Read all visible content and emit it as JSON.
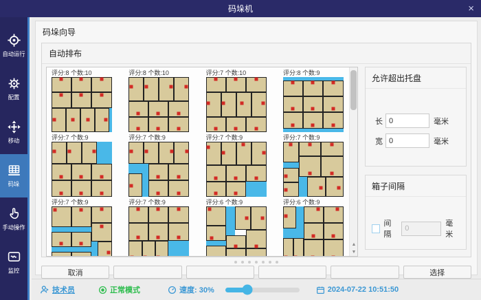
{
  "title_bar": {
    "title": "码垛机",
    "close": "×"
  },
  "sidebar": {
    "items": [
      {
        "name": "auto-run",
        "label": "自动运行",
        "icon": "target-icon",
        "active": false
      },
      {
        "name": "config",
        "label": "配置",
        "icon": "gear-icon",
        "active": false
      },
      {
        "name": "move",
        "label": "移动",
        "icon": "move-icon",
        "active": false
      },
      {
        "name": "palletize",
        "label": "码垛",
        "icon": "pallet-icon",
        "active": true
      },
      {
        "name": "manual",
        "label": "手动操作",
        "icon": "hand-icon",
        "active": false
      },
      {
        "name": "monitor",
        "label": "监控",
        "icon": "monitor-icon",
        "active": false
      }
    ]
  },
  "wizard": {
    "title": "码垛向导",
    "section_title": "自动排布"
  },
  "tiles": [
    {
      "label": "评分:8 个数:10",
      "g": [
        [
          96,
          56,
          4,
          44
        ]
      ],
      "b": [
        [
          0,
          0,
          33,
          28,
          16,
          4
        ],
        [
          33,
          0,
          33,
          28,
          49,
          4
        ],
        [
          66,
          0,
          34,
          28,
          83,
          4
        ],
        [
          0,
          28,
          33,
          28,
          16,
          32
        ],
        [
          33,
          28,
          33,
          28,
          49,
          32
        ],
        [
          66,
          28,
          34,
          28,
          83,
          32
        ],
        [
          0,
          56,
          24,
          44,
          5,
          78
        ],
        [
          24,
          56,
          24,
          44,
          35,
          78
        ],
        [
          48,
          56,
          24,
          44,
          60,
          78
        ],
        [
          72,
          56,
          24,
          44,
          90,
          78
        ]
      ]
    },
    {
      "label": "评分:8 个数:10",
      "g": [],
      "b": [
        [
          0,
          0,
          25,
          44,
          4,
          18
        ],
        [
          25,
          0,
          25,
          44,
          29,
          18
        ],
        [
          50,
          0,
          25,
          44,
          70,
          18
        ],
        [
          75,
          0,
          25,
          44,
          95,
          18
        ],
        [
          0,
          44,
          33,
          28,
          16,
          66
        ],
        [
          33,
          44,
          33,
          28,
          49,
          66
        ],
        [
          66,
          44,
          34,
          28,
          83,
          66
        ],
        [
          0,
          72,
          33,
          28,
          16,
          94
        ],
        [
          33,
          72,
          33,
          28,
          49,
          94
        ],
        [
          66,
          72,
          34,
          28,
          83,
          94
        ]
      ]
    },
    {
      "label": "评分:7 个数:10",
      "g": [],
      "b": [
        [
          0,
          0,
          33,
          28,
          16,
          4
        ],
        [
          33,
          0,
          33,
          28,
          49,
          4
        ],
        [
          66,
          0,
          34,
          28,
          83,
          4
        ],
        [
          0,
          28,
          25,
          44,
          4,
          48
        ],
        [
          25,
          28,
          25,
          44,
          29,
          48
        ],
        [
          50,
          28,
          25,
          44,
          60,
          48
        ],
        [
          75,
          28,
          25,
          44,
          95,
          48
        ],
        [
          0,
          72,
          33,
          28,
          16,
          94
        ],
        [
          33,
          72,
          33,
          28,
          49,
          94
        ],
        [
          66,
          72,
          34,
          28,
          83,
          94
        ]
      ]
    },
    {
      "label": "评分:8 个数:9",
      "g": [
        [
          0,
          0,
          100,
          6
        ],
        [
          0,
          94,
          100,
          6
        ]
      ],
      "b": [
        [
          0,
          6,
          33,
          29,
          16,
          10
        ],
        [
          33,
          6,
          33,
          29,
          49,
          10
        ],
        [
          66,
          6,
          34,
          29,
          83,
          10
        ],
        [
          0,
          35,
          33,
          29,
          16,
          58
        ],
        [
          33,
          35,
          33,
          29,
          49,
          58
        ],
        [
          66,
          35,
          34,
          29,
          83,
          58
        ],
        [
          0,
          64,
          33,
          30,
          16,
          88
        ],
        [
          33,
          64,
          33,
          30,
          49,
          88
        ],
        [
          66,
          64,
          34,
          30,
          83,
          88
        ]
      ]
    },
    {
      "label": "评分:7 个数:9",
      "g": [
        [
          75,
          0,
          25,
          40
        ]
      ],
      "b": [
        [
          0,
          0,
          25,
          40,
          4,
          18
        ],
        [
          25,
          0,
          25,
          40,
          29,
          18
        ],
        [
          50,
          0,
          25,
          40,
          70,
          18
        ],
        [
          0,
          40,
          33,
          30,
          16,
          64
        ],
        [
          33,
          40,
          33,
          30,
          49,
          64
        ],
        [
          66,
          40,
          34,
          30,
          83,
          64
        ],
        [
          0,
          70,
          33,
          30,
          16,
          94
        ],
        [
          33,
          70,
          33,
          30,
          49,
          94
        ],
        [
          66,
          70,
          34,
          30,
          83,
          94
        ]
      ]
    },
    {
      "label": "评分:7 个数:9",
      "g": [
        [
          0,
          40,
          33,
          18
        ],
        [
          22,
          58,
          11,
          42
        ]
      ],
      "b": [
        [
          0,
          0,
          25,
          40,
          4,
          18
        ],
        [
          25,
          0,
          25,
          40,
          29,
          18
        ],
        [
          50,
          0,
          25,
          40,
          71,
          18
        ],
        [
          75,
          0,
          25,
          40,
          96,
          18
        ],
        [
          0,
          58,
          22,
          42,
          4,
          80
        ],
        [
          33,
          40,
          33,
          30,
          49,
          64
        ],
        [
          66,
          40,
          34,
          30,
          83,
          64
        ],
        [
          33,
          70,
          33,
          30,
          49,
          94
        ],
        [
          66,
          70,
          34,
          30,
          83,
          94
        ]
      ]
    },
    {
      "label": "评分:7 个数:9",
      "g": [
        [
          66,
          72,
          34,
          28
        ]
      ],
      "b": [
        [
          0,
          0,
          25,
          42,
          4,
          10
        ],
        [
          25,
          0,
          25,
          42,
          29,
          20
        ],
        [
          50,
          0,
          25,
          42,
          62,
          5
        ],
        [
          75,
          0,
          25,
          42,
          96,
          20
        ],
        [
          0,
          42,
          33,
          30,
          16,
          66
        ],
        [
          33,
          42,
          33,
          30,
          49,
          66
        ],
        [
          66,
          42,
          34,
          30,
          83,
          66
        ],
        [
          0,
          72,
          33,
          28,
          16,
          94
        ],
        [
          33,
          72,
          33,
          28,
          49,
          94
        ]
      ]
    },
    {
      "label": "评分:7 个数:9",
      "g": [
        [
          0,
          38,
          26,
          10
        ],
        [
          26,
          64,
          14,
          36
        ]
      ],
      "b": [
        [
          0,
          0,
          26,
          38,
          13,
          5
        ],
        [
          26,
          0,
          37,
          26,
          44,
          5
        ],
        [
          63,
          0,
          37,
          26,
          81,
          5
        ],
        [
          26,
          26,
          37,
          38,
          44,
          58
        ],
        [
          63,
          26,
          37,
          38,
          81,
          58
        ],
        [
          0,
          48,
          26,
          26,
          5,
          62
        ],
        [
          0,
          74,
          26,
          26,
          5,
          88
        ],
        [
          40,
          64,
          30,
          36,
          62,
          84
        ],
        [
          70,
          64,
          30,
          36,
          92,
          84
        ]
      ]
    },
    {
      "label": "评分:7 个数:9",
      "g": [
        [
          0,
          38,
          66,
          8
        ],
        [
          0,
          74,
          66,
          8
        ],
        [
          66,
          64,
          10,
          36
        ]
      ],
      "b": [
        [
          0,
          0,
          33,
          38,
          6,
          6
        ],
        [
          33,
          0,
          33,
          38,
          49,
          6
        ],
        [
          66,
          0,
          34,
          30,
          83,
          5
        ],
        [
          66,
          30,
          34,
          34,
          83,
          36
        ],
        [
          0,
          46,
          33,
          28,
          16,
          68
        ],
        [
          33,
          46,
          33,
          28,
          49,
          68
        ],
        [
          0,
          82,
          33,
          18,
          16,
          96
        ],
        [
          33,
          82,
          33,
          18,
          49,
          96
        ],
        [
          76,
          64,
          24,
          36,
          94,
          84
        ]
      ]
    },
    {
      "label": "评分:7 个数:9",
      "g": [
        [
          66,
          62,
          34,
          38
        ]
      ],
      "b": [
        [
          0,
          0,
          33,
          30,
          16,
          5
        ],
        [
          33,
          0,
          33,
          30,
          49,
          5
        ],
        [
          66,
          0,
          34,
          30,
          83,
          5
        ],
        [
          0,
          30,
          33,
          32,
          16,
          56
        ],
        [
          33,
          30,
          33,
          32,
          49,
          56
        ],
        [
          66,
          30,
          34,
          32,
          83,
          56
        ],
        [
          0,
          62,
          22,
          38,
          5,
          92
        ],
        [
          22,
          62,
          22,
          38,
          27,
          92
        ],
        [
          44,
          62,
          22,
          38,
          49,
          92
        ]
      ]
    },
    {
      "label": "评分:6 个数:9",
      "g": [
        [
          33,
          0,
          15,
          52
        ],
        [
          0,
          63,
          33,
          8
        ]
      ],
      "b": [
        [
          0,
          0,
          33,
          35,
          6,
          5
        ],
        [
          48,
          0,
          26,
          42,
          68,
          21
        ],
        [
          74,
          0,
          26,
          42,
          94,
          21
        ],
        [
          0,
          35,
          33,
          28,
          10,
          58
        ],
        [
          33,
          52,
          33,
          24,
          49,
          72
        ],
        [
          66,
          42,
          34,
          34,
          83,
          72
        ],
        [
          0,
          71,
          33,
          29,
          8,
          94
        ],
        [
          33,
          76,
          33,
          24,
          49,
          96
        ],
        [
          66,
          76,
          34,
          24,
          83,
          96
        ]
      ]
    },
    {
      "label": "评分:6 个数:9",
      "g": [
        [
          22,
          0,
          12,
          58
        ],
        [
          0,
          40,
          22,
          18
        ]
      ],
      "b": [
        [
          0,
          0,
          22,
          40,
          4,
          18
        ],
        [
          34,
          0,
          33,
          30,
          58,
          5
        ],
        [
          67,
          0,
          33,
          30,
          90,
          5
        ],
        [
          34,
          30,
          33,
          30,
          50,
          54
        ],
        [
          67,
          30,
          33,
          30,
          83,
          54
        ],
        [
          0,
          58,
          17,
          42,
          4,
          92
        ],
        [
          17,
          58,
          17,
          42,
          21,
          92
        ],
        [
          34,
          60,
          33,
          40,
          49,
          92
        ],
        [
          67,
          60,
          33,
          40,
          83,
          92
        ]
      ]
    }
  ],
  "right_panels": {
    "overflow": {
      "title": "允许超出托盘",
      "rows": [
        {
          "label": "长",
          "value": "0",
          "unit": "毫米"
        },
        {
          "label": "宽",
          "value": "0",
          "unit": "毫米"
        }
      ]
    },
    "spacing": {
      "title": "箱子间隔",
      "checkbox_label": "间隔",
      "checked": false,
      "value": "0",
      "unit": "毫米"
    }
  },
  "footer": {
    "buttons": [
      "取消",
      "",
      "",
      "",
      "",
      "选择"
    ],
    "dot_count": 7
  },
  "status_bar": {
    "user": "技术员",
    "mode": "正常模式",
    "speed_label": "速度: 30%",
    "speed_percent": 30,
    "datetime": "2024-07-22 10:51:50"
  },
  "colors": {
    "titlebar": "#2a2a68",
    "sidebar": "#26265e",
    "sidebar_active": "#3e79bb",
    "accent_line": "#3e7ec6",
    "box_fill": "#d8ca9c",
    "gap_blue": "#49b8e8",
    "marker_red": "#d22b25",
    "status_blue": "#3a97d4",
    "status_green": "#2ebd4e",
    "slider_fill": "#45b5e5"
  }
}
